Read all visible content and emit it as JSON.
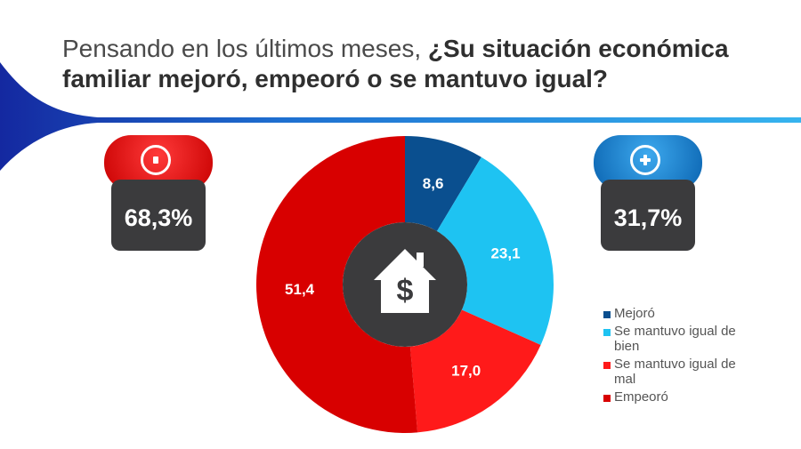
{
  "header": {
    "title_plain": "Pensando en los últimos meses, ",
    "title_bold": "¿Su situación económica familiar mejoró, empeoró o se mantuvo igual?"
  },
  "badges": {
    "negative": {
      "symbol": "-",
      "value": "68,3%"
    },
    "positive": {
      "symbol": "+",
      "value": "31,7%"
    }
  },
  "center_icon": "house-dollar-icon",
  "colors": {
    "mejoro": "#0a4f8f",
    "se_mantuvo_bien": "#1ec3f2",
    "se_mantuvo_mal": "#ff1a1a",
    "empeoro": "#d80000",
    "center": "#3b3b3d"
  },
  "chart_data": {
    "type": "pie",
    "title": "",
    "categories": [
      "Mejoró",
      "Se mantuvo igual de bien",
      "Se mantuvo igual de mal",
      "Empeoró"
    ],
    "values": [
      8.6,
      23.1,
      17.0,
      51.4
    ],
    "data_labels": [
      "8,6",
      "23,1",
      "17,0",
      "51,4"
    ],
    "colors": [
      "#0a4f8f",
      "#1ec3f2",
      "#ff1a1a",
      "#d80000"
    ],
    "legend": {
      "placement": "bottom-right",
      "entries": [
        {
          "label": "Mejoró",
          "color": "#0a4f8f"
        },
        {
          "label": "Se mantuvo igual de bien",
          "color": "#1ec3f2"
        },
        {
          "label": "Se mantuvo igual de mal",
          "color": "#ff1a1a"
        },
        {
          "label": "Empeoró",
          "color": "#d80000"
        }
      ]
    }
  }
}
